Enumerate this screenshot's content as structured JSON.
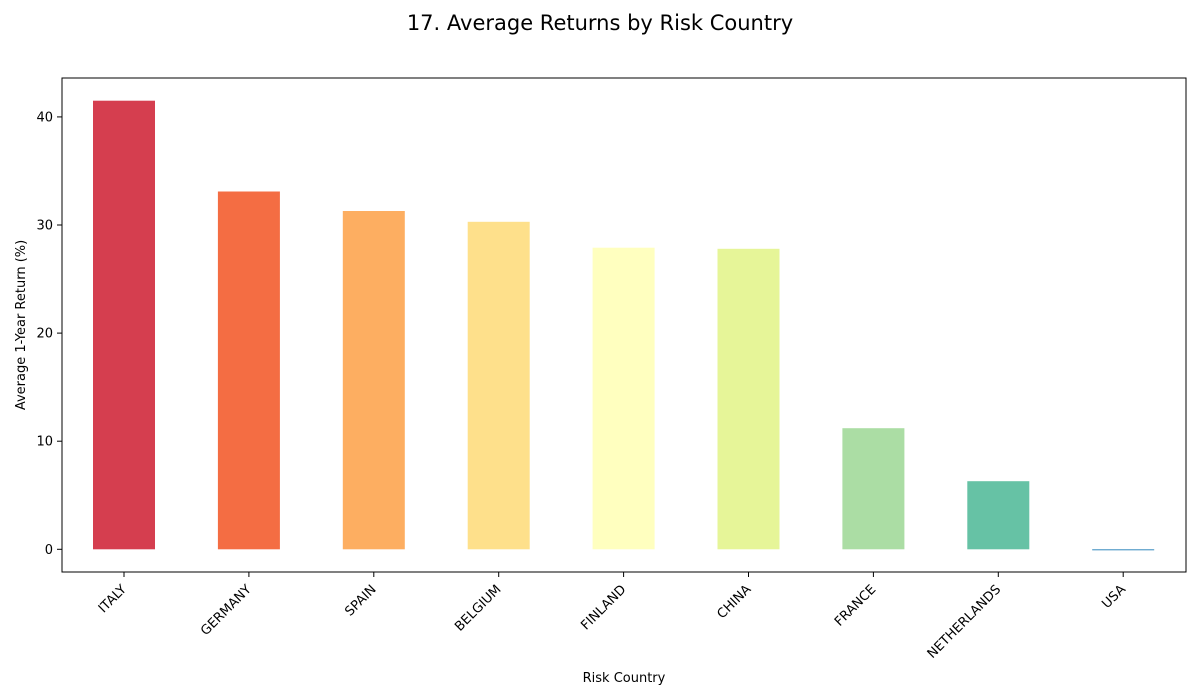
{
  "chart_data": {
    "type": "bar",
    "title": "17. Average Returns by Risk Country",
    "xlabel": "Risk Country",
    "ylabel": "Average 1-Year Return (%)",
    "categories": [
      "ITALY",
      "GERMANY",
      "SPAIN",
      "BELGIUM",
      "FINLAND",
      "CHINA",
      "FRANCE",
      "NETHERLANDS",
      "USA"
    ],
    "values": [
      41.5,
      33.1,
      31.3,
      30.3,
      27.9,
      27.8,
      11.2,
      6.3,
      0.0
    ],
    "colors": [
      "#d53e4f",
      "#f46d43",
      "#fdae61",
      "#fee08b",
      "#ffffbf",
      "#e6f598",
      "#abdda4",
      "#66c2a5",
      "#3288bd"
    ],
    "ylim": [
      -2.1,
      43.6
    ],
    "yticks": [
      0,
      10,
      20,
      30,
      40
    ],
    "grid": false,
    "legend": "none"
  }
}
